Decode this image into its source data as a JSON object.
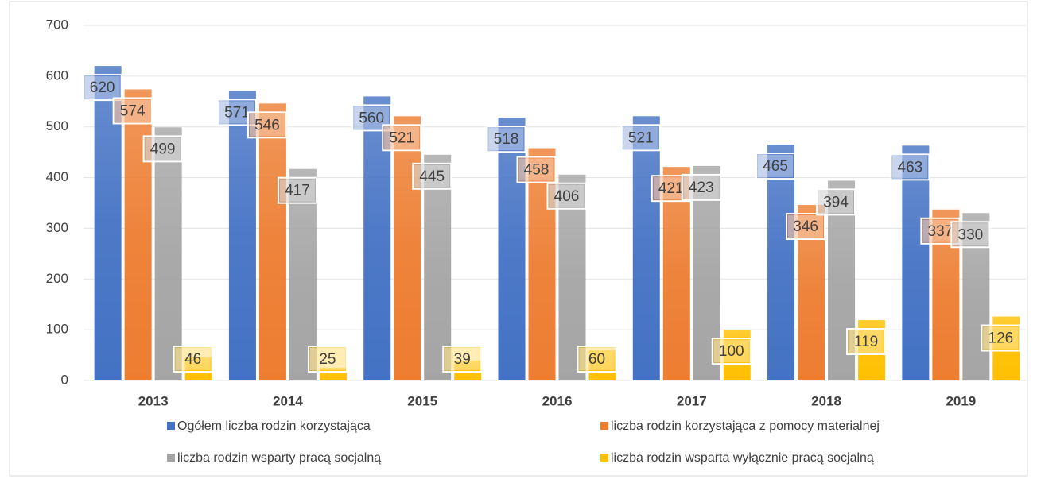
{
  "chart_data": {
    "type": "bar",
    "categories": [
      "2013",
      "2014",
      "2015",
      "2016",
      "2017",
      "2018",
      "2019"
    ],
    "series": [
      {
        "name": "Ogółem liczba rodzin korzystająca",
        "color": "#4472c4",
        "values": [
          620,
          571,
          560,
          518,
          521,
          465,
          463
        ]
      },
      {
        "name": "liczba rodzin korzystająca z pomocy materialnej",
        "color": "#ed7d31",
        "values": [
          574,
          546,
          521,
          458,
          421,
          346,
          337
        ]
      },
      {
        "name": "liczba rodzin wsparty pracą socjalną",
        "color": "#a5a5a5",
        "values": [
          499,
          417,
          445,
          406,
          423,
          394,
          330
        ]
      },
      {
        "name": "liczba rodzin wsparta wyłącznie pracą socjalną",
        "color": "#ffc000",
        "values": [
          46,
          25,
          39,
          60,
          100,
          119,
          126
        ]
      }
    ],
    "ylim": [
      0,
      700
    ],
    "yticks": [
      0,
      100,
      200,
      300,
      400,
      500,
      600,
      700
    ],
    "grid": true,
    "legend": "bottom"
  }
}
